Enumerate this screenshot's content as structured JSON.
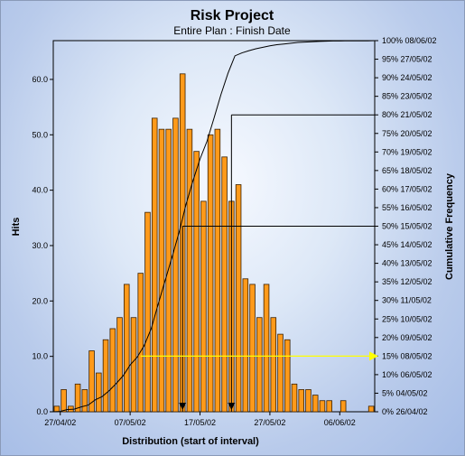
{
  "chart_data": {
    "type": "bar",
    "title": "Risk Project",
    "subtitle": "Entire Plan : Finish Date",
    "xlabel": "Distribution (start of interval)",
    "ylabel": "Hits",
    "y2label": "Cumulative Frequency",
    "ylim": [
      0,
      67
    ],
    "y_ticks": [
      "0.0",
      "10.0",
      "20.0",
      "30.0",
      "40.0",
      "50.0",
      "60.0"
    ],
    "x_tick_labels": [
      "27/04/02",
      "07/05/02",
      "17/05/02",
      "27/05/02",
      "06/06/02"
    ],
    "right_axis_labels": [
      "0%  26/04/02",
      "5%  04/05/02",
      "10%  06/05/02",
      "15%  08/05/02",
      "20%  09/05/02",
      "25%  10/05/02",
      "30%  11/05/02",
      "35%  12/05/02",
      "40%  13/05/02",
      "45%  14/05/02",
      "50%  15/05/02",
      "55%  16/05/02",
      "60%  17/05/02",
      "65%  18/05/02",
      "70%  19/05/02",
      "75%  20/05/02",
      "80%  21/05/02",
      "85%  23/05/02",
      "90%  24/05/02",
      "95%  27/05/02",
      "100%  08/06/02"
    ],
    "values": [
      1,
      4,
      1,
      5,
      4,
      11,
      7,
      13,
      15,
      17,
      23,
      17,
      25,
      36,
      53,
      51,
      51,
      53,
      61,
      51,
      47,
      38,
      50,
      51,
      46,
      38,
      41,
      24,
      23,
      17,
      23,
      17,
      14,
      13,
      5,
      4,
      4,
      3,
      2,
      2,
      0,
      2,
      0,
      0,
      0,
      1
    ],
    "cumulative_pct": [
      0.1,
      0.6,
      0.7,
      1.3,
      1.8,
      3.2,
      4.1,
      5.7,
      7.6,
      9.7,
      12.6,
      14.7,
      17.8,
      22.3,
      28.9,
      35.3,
      41.7,
      48.3,
      55.9,
      62.3,
      68.1,
      72.9,
      79.1,
      85.5,
      91.2,
      95.9,
      96.7,
      97.3,
      97.8,
      98.2,
      98.6,
      98.9,
      99.1,
      99.3,
      99.5,
      99.6,
      99.7,
      99.8,
      99.85,
      99.9,
      99.9,
      99.95,
      99.95,
      99.95,
      99.95,
      100
    ],
    "reference_lines": [
      {
        "pct": 50,
        "bin": 18
      },
      {
        "pct": 80,
        "bin": 25
      },
      {
        "pct": 15,
        "bin": 12
      }
    ],
    "markers_at_bins": [
      18,
      25
    ],
    "colors": {
      "bar_fill": "#ff9a1a",
      "bar_stroke": "#3a2000",
      "curve": "#000000",
      "ref_line": "#000000",
      "highlight_line": "#ffff00"
    }
  }
}
